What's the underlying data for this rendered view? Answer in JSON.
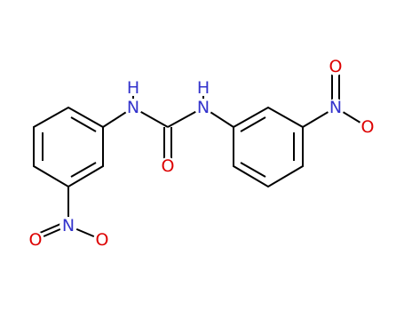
{
  "atoms": [
    {
      "label": "H"
    },
    {
      "label": "N"
    },
    {
      "label": "H"
    },
    {
      "label": "N"
    },
    {
      "label": "O"
    },
    {
      "label": "N"
    },
    {
      "label": "O"
    },
    {
      "label": "O"
    },
    {
      "label": "N"
    },
    {
      "label": "O"
    },
    {
      "label": "O"
    }
  ]
}
